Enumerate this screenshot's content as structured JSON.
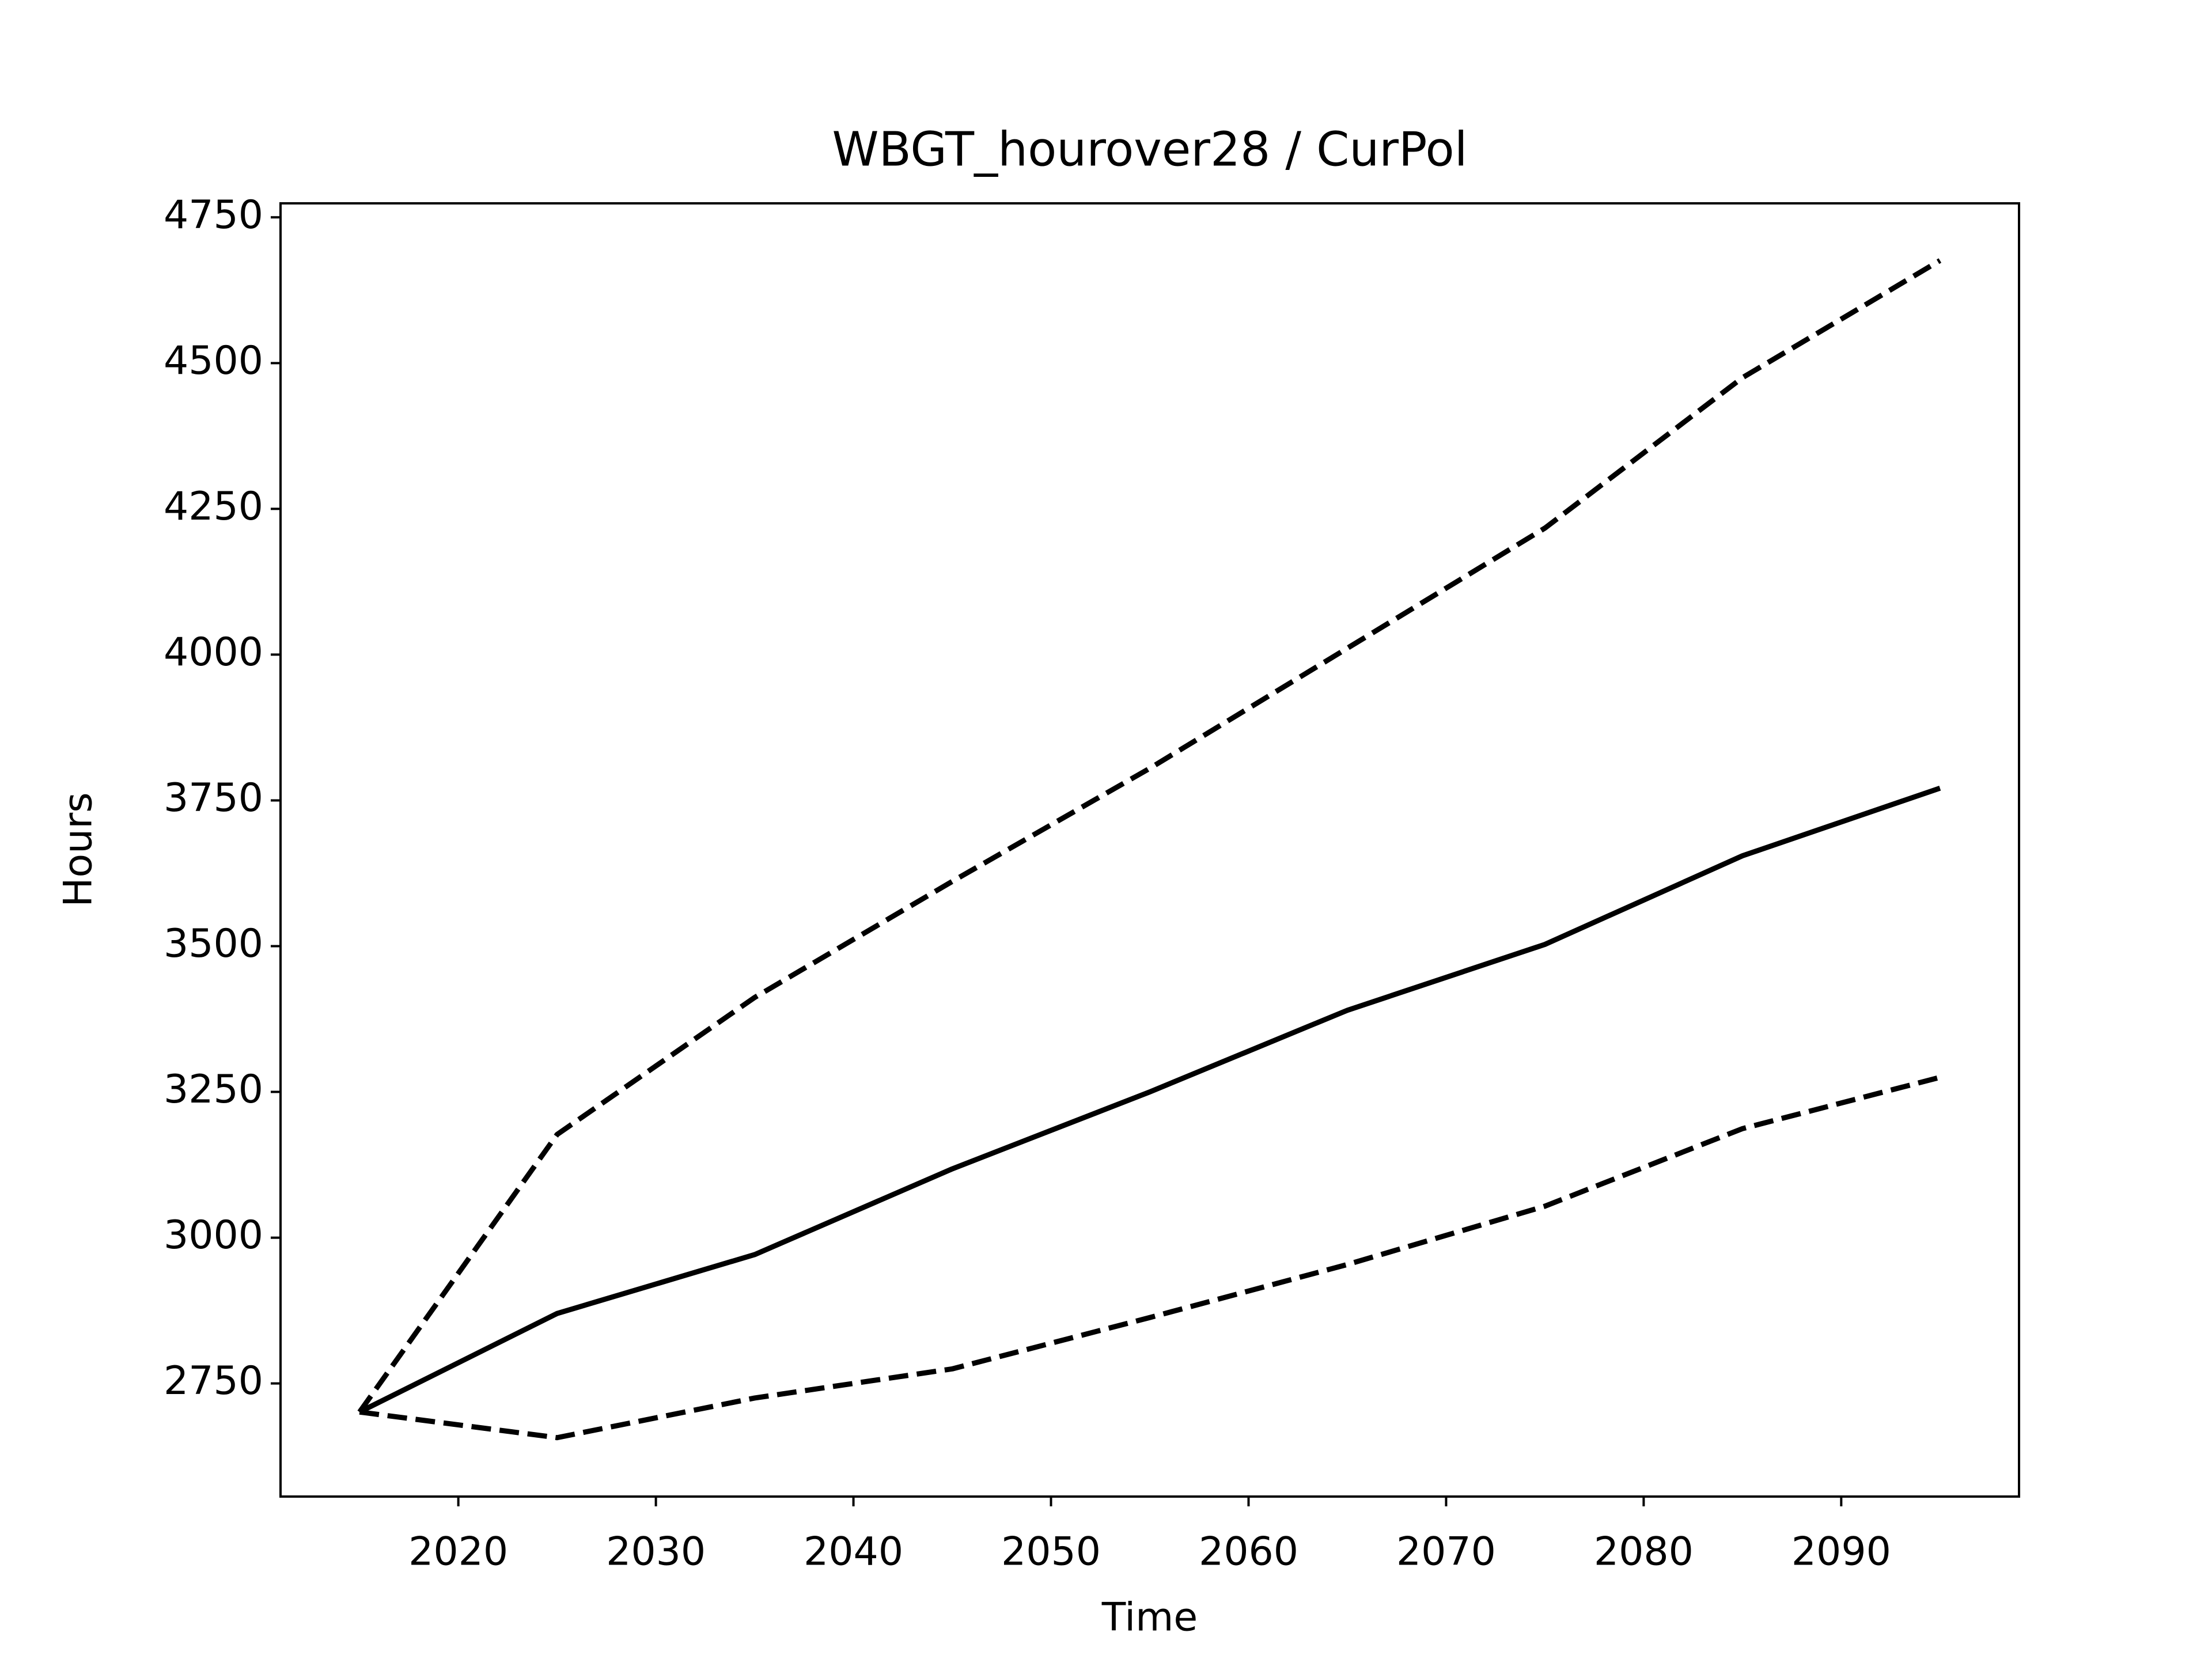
{
  "chart_data": {
    "type": "line",
    "title": "WBGT_hourover28 / CurPol",
    "xlabel": "Time",
    "ylabel": "Hours",
    "x": [
      2015,
      2025,
      2035,
      2045,
      2055,
      2065,
      2075,
      2085,
      2095
    ],
    "series": [
      {
        "color": "#000000",
        "dashed": false,
        "values": [
          2701,
          2870,
          2971,
          3118,
          3250,
          3390,
          3503,
          3655,
          3771
        ]
      },
      {
        "color": "#000000",
        "dashed": true,
        "values": [
          2701,
          3177,
          3412,
          3611,
          3805,
          4011,
          4217,
          4475,
          4676
        ]
      },
      {
        "color": "#000000",
        "dashed": true,
        "values": [
          2701,
          2657,
          2725,
          2775,
          2863,
          2954,
          3054,
          3187,
          3275
        ]
      }
    ],
    "xlim": [
      2011,
      2099
    ],
    "xticks": [
      2020,
      2030,
      2040,
      2050,
      2060,
      2070,
      2080,
      2090
    ],
    "ylim": [
      2556,
      4774
    ],
    "yticks": [
      2750,
      3000,
      3250,
      3500,
      3750,
      4000,
      4250,
      4500,
      4750
    ],
    "grid": false
  }
}
